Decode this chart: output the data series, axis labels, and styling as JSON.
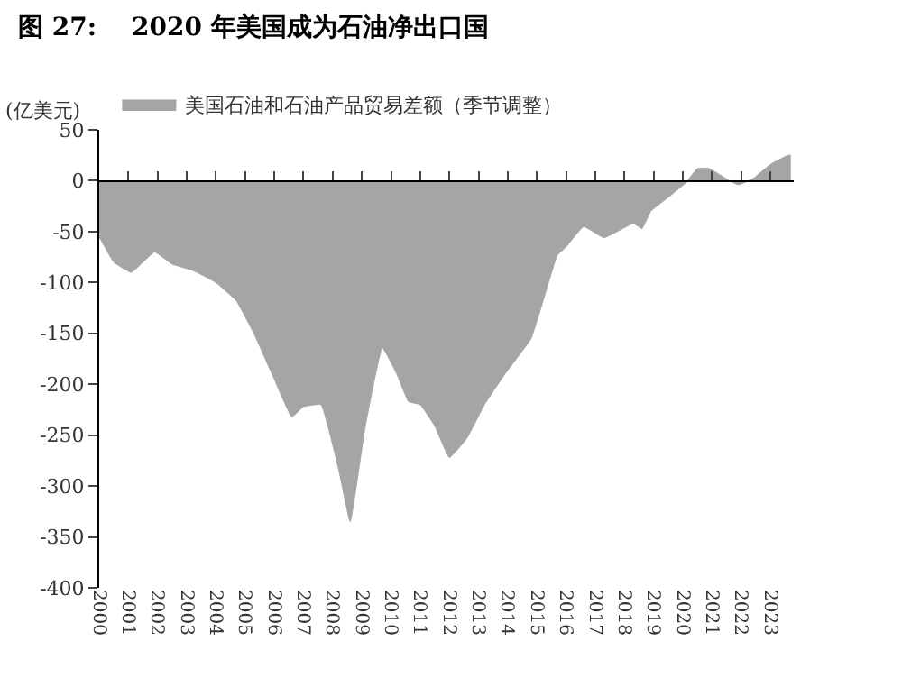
{
  "chart_data": {
    "type": "area",
    "title": "图 27:    2020 年美国成为石油净出口国",
    "ylabel": "(亿美元)",
    "x": [
      2000.0,
      2000.5,
      2001.1,
      2001.9,
      2002.5,
      2003.2,
      2004.0,
      2004.7,
      2005.3,
      2006.0,
      2006.6,
      2007.0,
      2007.6,
      2008.2,
      2008.6,
      2009.1,
      2009.7,
      2010.2,
      2010.6,
      2011.0,
      2011.5,
      2012.0,
      2012.6,
      2013.2,
      2013.9,
      2014.8,
      2015.2,
      2015.7,
      2016.0,
      2016.6,
      2017.3,
      2018.3,
      2018.6,
      2018.9,
      2019.6,
      2020.1,
      2020.5,
      2020.9,
      2021.6,
      2021.9,
      2022.4,
      2023.0,
      2023.6,
      2023.7
    ],
    "series": [
      {
        "name": "美国石油和石油产品贸易差额（季节调整）",
        "color": "#a6a4a4",
        "values": [
          -55,
          -80,
          -90,
          -70,
          -82,
          -88,
          -100,
          -118,
          -150,
          -195,
          -232,
          -222,
          -220,
          -283,
          -335,
          -244,
          -164,
          -190,
          -217,
          -220,
          -241,
          -272,
          -253,
          -220,
          -190,
          -155,
          -119,
          -73,
          -65,
          -45,
          -56,
          -42,
          -47,
          -30,
          -14,
          -2,
          12,
          12,
          0,
          -4,
          2,
          16,
          25,
          25
        ]
      }
    ],
    "xlim": [
      2000,
      2023.8
    ],
    "xticks": [
      2000,
      2001,
      2002,
      2003,
      2004,
      2005,
      2006,
      2007,
      2008,
      2009,
      2010,
      2011,
      2012,
      2013,
      2014,
      2015,
      2016,
      2017,
      2018,
      2019,
      2020,
      2021,
      2022,
      2023
    ],
    "ylim": [
      -400,
      50
    ],
    "yticks": [
      -400,
      -350,
      -300,
      -250,
      -200,
      -150,
      -100,
      -50,
      0,
      50
    ],
    "legend": "top left"
  }
}
